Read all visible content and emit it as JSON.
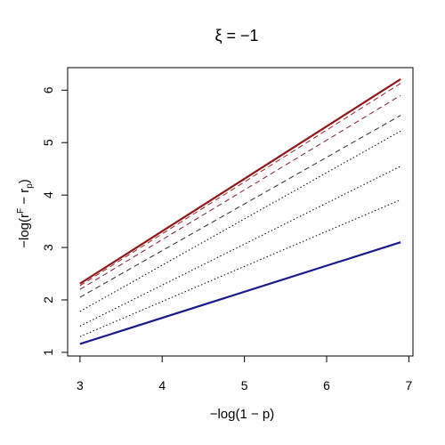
{
  "chart_data": {
    "type": "line",
    "title": "ξ = −1",
    "xlabel": "−log(1 − p)",
    "ylabel_parts": {
      "pre": "−log(r",
      "sup": "F",
      "mid": " − r",
      "sub": "p",
      "post": ")"
    },
    "xlim": [
      2.85,
      7.05
    ],
    "ylim": [
      0.93,
      6.43
    ],
    "x_ticks": [
      3,
      4,
      5,
      6,
      7
    ],
    "y_ticks": [
      1,
      2,
      3,
      4,
      5,
      6
    ],
    "x_tick_labels": [
      "3",
      "4",
      "5",
      "6",
      "7"
    ],
    "y_tick_labels": [
      "1",
      "2",
      "3",
      "4",
      "5",
      "6"
    ],
    "grid": false,
    "series": [
      {
        "style": "solid-thick",
        "color": "#8b1a1a",
        "x": [
          3.0,
          6.9
        ],
        "y": [
          2.31,
          6.21
        ]
      },
      {
        "style": "dashed",
        "color": "#a0202a",
        "x": [
          3.0,
          6.9
        ],
        "y": [
          2.27,
          6.13
        ]
      },
      {
        "style": "dashed",
        "color": "#7a1f3a",
        "x": [
          3.0,
          6.9
        ],
        "y": [
          2.2,
          5.9
        ]
      },
      {
        "style": "dashed",
        "color": "#2b2b2b",
        "x": [
          3.0,
          6.9
        ],
        "y": [
          2.05,
          5.52
        ]
      },
      {
        "style": "dotted",
        "color": "#000000",
        "x": [
          3.0,
          6.9
        ],
        "y": [
          1.78,
          5.22
        ]
      },
      {
        "style": "dotted",
        "color": "#000000",
        "x": [
          3.0,
          6.9
        ],
        "y": [
          1.5,
          4.55
        ]
      },
      {
        "style": "dotted",
        "color": "#000000",
        "x": [
          3.0,
          6.9
        ],
        "y": [
          1.3,
          3.91
        ]
      },
      {
        "style": "solid-thick",
        "color": "#1a1a8c",
        "x": [
          3.0,
          6.9
        ],
        "y": [
          1.16,
          3.1
        ]
      }
    ]
  }
}
